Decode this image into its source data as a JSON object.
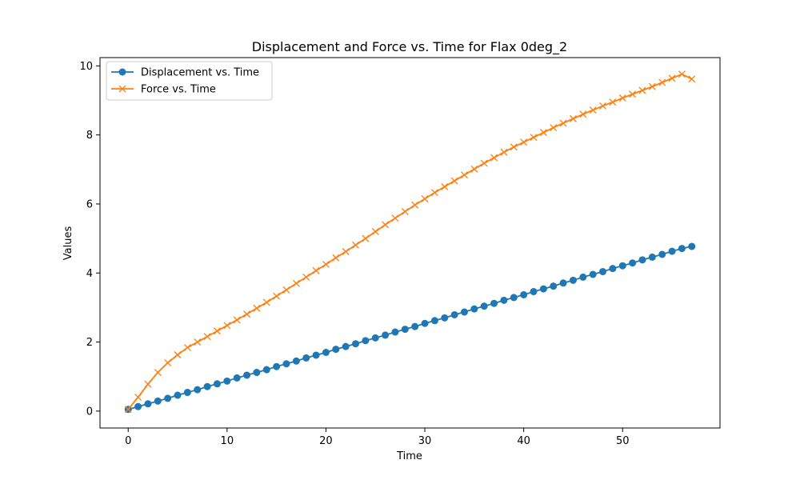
{
  "chart_data": {
    "type": "line",
    "title": "Displacement and Force vs. Time for Flax 0deg_2",
    "xlabel": "Time",
    "ylabel": "Values",
    "xlim": [
      -2.85,
      59.85
    ],
    "ylim": [
      -0.49,
      10.24
    ],
    "xticks": [
      0,
      10,
      20,
      30,
      40,
      50
    ],
    "yticks": [
      0,
      2,
      4,
      6,
      8,
      10
    ],
    "grid": false,
    "legend_position": "top-left",
    "x": [
      0,
      1,
      2,
      3,
      4,
      5,
      6,
      7,
      8,
      9,
      10,
      11,
      12,
      13,
      14,
      15,
      16,
      17,
      18,
      19,
      20,
      21,
      22,
      23,
      24,
      25,
      26,
      27,
      28,
      29,
      30,
      31,
      32,
      33,
      34,
      35,
      36,
      37,
      38,
      39,
      40,
      41,
      42,
      43,
      44,
      45,
      46,
      47,
      48,
      49,
      50,
      51,
      52,
      53,
      54,
      55,
      56,
      57
    ],
    "series": [
      {
        "name": "Displacement vs. Time",
        "color": "#1f77b4",
        "marker": "circle",
        "values": [
          0.05,
          0.13,
          0.21,
          0.29,
          0.37,
          0.46,
          0.54,
          0.62,
          0.71,
          0.79,
          0.87,
          0.96,
          1.04,
          1.12,
          1.2,
          1.29,
          1.37,
          1.45,
          1.54,
          1.62,
          1.7,
          1.79,
          1.87,
          1.95,
          2.04,
          2.12,
          2.2,
          2.29,
          2.37,
          2.45,
          2.54,
          2.62,
          2.7,
          2.79,
          2.87,
          2.96,
          3.04,
          3.12,
          3.21,
          3.29,
          3.37,
          3.46,
          3.54,
          3.62,
          3.71,
          3.79,
          3.88,
          3.96,
          4.04,
          4.13,
          4.21,
          4.29,
          4.38,
          4.46,
          4.54,
          4.63,
          4.71,
          4.77
        ]
      },
      {
        "name": "Force vs. Time",
        "color": "#ff7f0e",
        "marker": "x",
        "values": [
          0.05,
          0.4,
          0.78,
          1.12,
          1.4,
          1.63,
          1.84,
          2.0,
          2.16,
          2.32,
          2.48,
          2.64,
          2.81,
          2.98,
          3.15,
          3.33,
          3.51,
          3.7,
          3.88,
          4.07,
          4.25,
          4.44,
          4.62,
          4.81,
          5.0,
          5.2,
          5.4,
          5.59,
          5.78,
          5.97,
          6.15,
          6.33,
          6.5,
          6.67,
          6.84,
          7.01,
          7.18,
          7.34,
          7.5,
          7.65,
          7.79,
          7.93,
          8.07,
          8.21,
          8.34,
          8.47,
          8.6,
          8.72,
          8.84,
          8.95,
          9.07,
          9.18,
          9.29,
          9.4,
          9.52,
          9.64,
          9.76,
          9.62
        ]
      }
    ]
  }
}
